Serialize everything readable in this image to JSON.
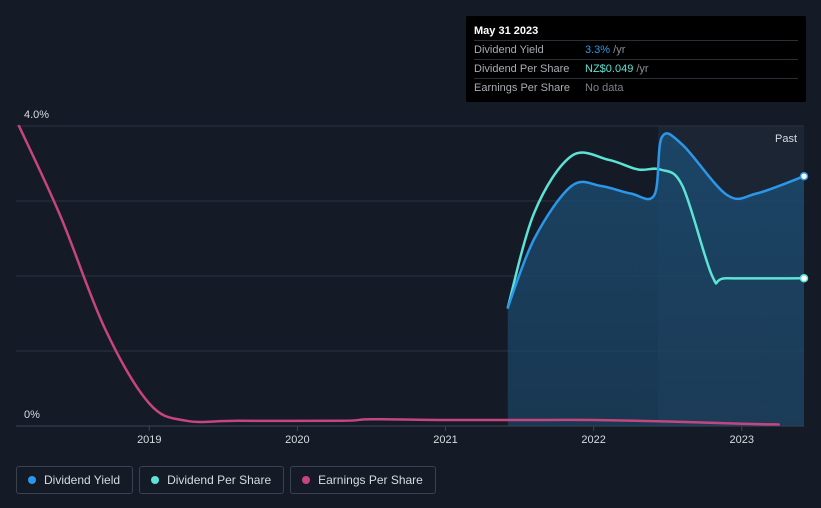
{
  "tooltip": {
    "date": "May 31 2023",
    "rows": [
      {
        "label": "Dividend Yield",
        "value": "3.3%",
        "unit": " /yr"
      },
      {
        "label": "Dividend Per Share",
        "value": "NZ$0.049",
        "unit": " /yr"
      },
      {
        "label": "Earnings Per Share",
        "value": "No data",
        "unit": ""
      }
    ]
  },
  "legend": [
    {
      "label": "Dividend Yield",
      "color": "#2b97e8"
    },
    {
      "label": "Dividend Per Share",
      "color": "#5de3d6"
    },
    {
      "label": "Earnings Per Share",
      "color": "#c6457e"
    }
  ],
  "chart_data": {
    "type": "line",
    "past_label": "Past",
    "y_tick_labels": [
      "4.0%",
      "0%"
    ],
    "ylim": [
      0,
      4.0
    ],
    "xlim": [
      2018.1,
      2023.42
    ],
    "x_ticks": [
      2019,
      2020,
      2021,
      2022,
      2023
    ],
    "x_tick_labels": [
      "2019",
      "2020",
      "2021",
      "2022",
      "2023"
    ],
    "grid": true,
    "series": [
      {
        "name": "Dividend Yield",
        "color": "#2b97e8",
        "points": [
          [
            2021.42,
            1.58
          ],
          [
            2021.6,
            2.5
          ],
          [
            2021.85,
            3.2
          ],
          [
            2022.05,
            3.2
          ],
          [
            2022.25,
            3.1
          ],
          [
            2022.41,
            3.08
          ],
          [
            2022.46,
            3.85
          ],
          [
            2022.6,
            3.75
          ],
          [
            2022.9,
            3.08
          ],
          [
            2023.1,
            3.1
          ],
          [
            2023.42,
            3.33
          ]
        ]
      },
      {
        "name": "Dividend Per Share",
        "color": "#5de3d6",
        "points": [
          [
            2021.42,
            1.58
          ],
          [
            2021.6,
            2.85
          ],
          [
            2021.85,
            3.6
          ],
          [
            2022.1,
            3.55
          ],
          [
            2022.3,
            3.42
          ],
          [
            2022.45,
            3.42
          ],
          [
            2022.6,
            3.2
          ],
          [
            2022.8,
            2.0
          ],
          [
            2022.9,
            1.97
          ],
          [
            2023.42,
            1.97
          ]
        ]
      },
      {
        "name": "Earnings Per Share",
        "color": "#c6457e",
        "points": [
          [
            2018.12,
            4.0
          ],
          [
            2018.4,
            2.8
          ],
          [
            2018.7,
            1.3
          ],
          [
            2019.0,
            0.3
          ],
          [
            2019.25,
            0.07
          ],
          [
            2019.6,
            0.07
          ],
          [
            2020.3,
            0.07
          ],
          [
            2020.5,
            0.09
          ],
          [
            2021.0,
            0.08
          ],
          [
            2021.5,
            0.08
          ],
          [
            2022.0,
            0.08
          ],
          [
            2022.5,
            0.06
          ],
          [
            2023.0,
            0.03
          ],
          [
            2023.25,
            0.02
          ]
        ]
      }
    ]
  }
}
